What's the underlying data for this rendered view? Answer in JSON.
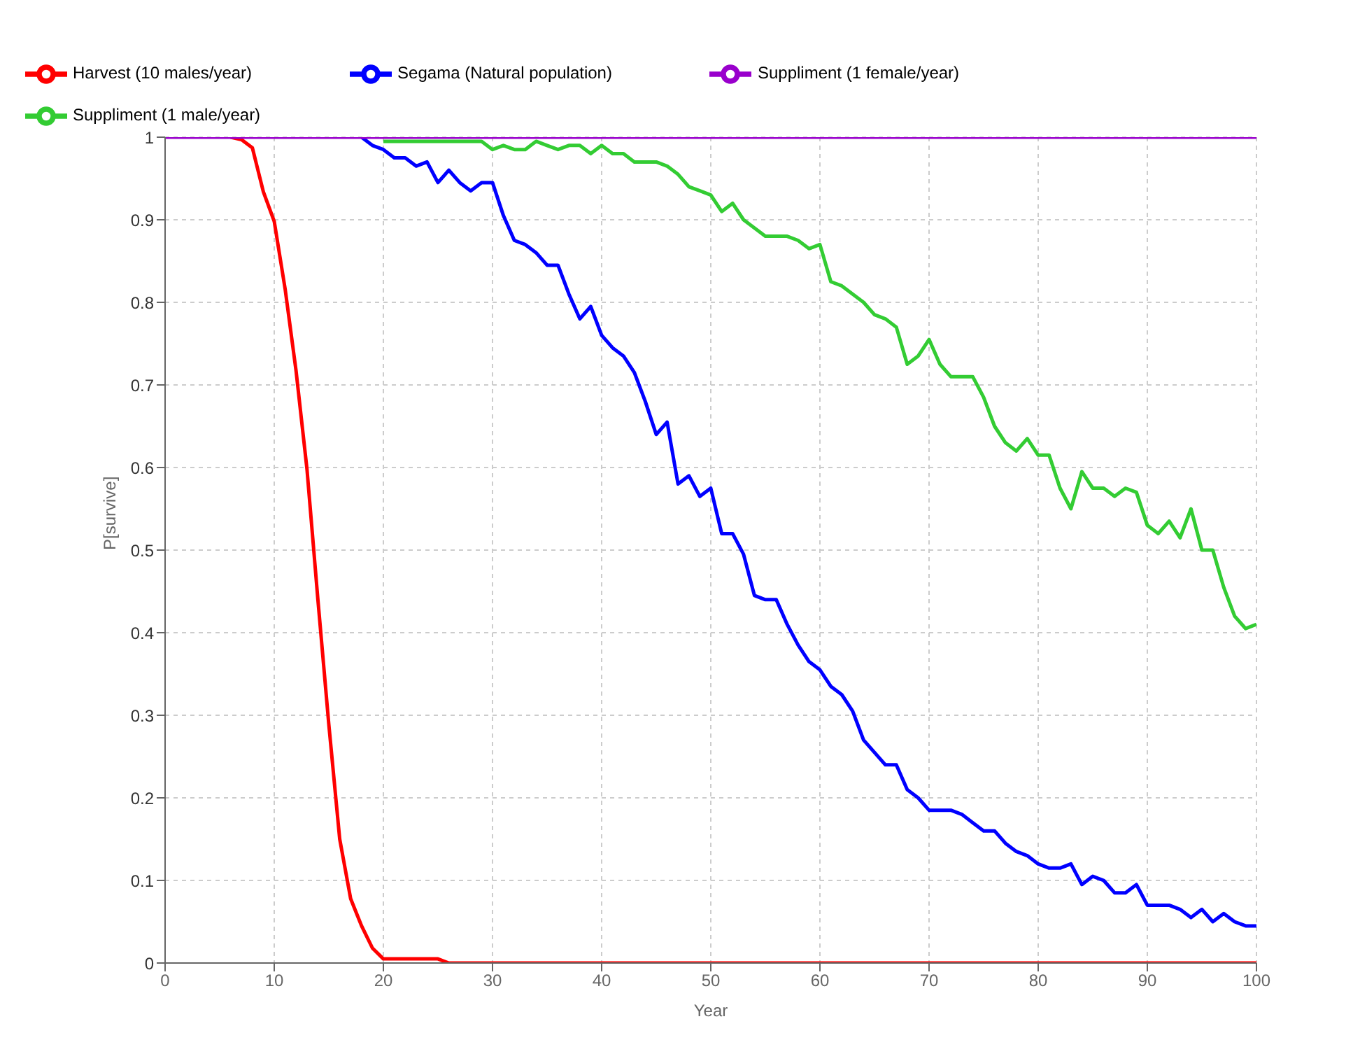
{
  "chart_data": {
    "type": "line",
    "xlabel": "Year",
    "ylabel": "P[survive]",
    "x": [
      0,
      1,
      2,
      3,
      4,
      5,
      6,
      7,
      8,
      9,
      10,
      11,
      12,
      13,
      14,
      15,
      16,
      17,
      18,
      19,
      20,
      21,
      22,
      23,
      24,
      25,
      26,
      27,
      28,
      29,
      30,
      31,
      32,
      33,
      34,
      35,
      36,
      37,
      38,
      39,
      40,
      41,
      42,
      43,
      44,
      45,
      46,
      47,
      48,
      49,
      50,
      51,
      52,
      53,
      54,
      55,
      56,
      57,
      58,
      59,
      60,
      61,
      62,
      63,
      64,
      65,
      66,
      67,
      68,
      69,
      70,
      71,
      72,
      73,
      74,
      75,
      76,
      77,
      78,
      79,
      80,
      81,
      82,
      83,
      84,
      85,
      86,
      87,
      88,
      89,
      90,
      91,
      92,
      93,
      94,
      95,
      96,
      97,
      98,
      99,
      100
    ],
    "series": [
      {
        "name": "Segama (Natural population)",
        "color": "#0000ff",
        "values": [
          null,
          null,
          null,
          null,
          null,
          null,
          null,
          null,
          null,
          null,
          null,
          null,
          null,
          null,
          null,
          null,
          null,
          null,
          1,
          0.99,
          0.985,
          0.975,
          0.975,
          0.965,
          0.97,
          0.945,
          0.96,
          0.945,
          0.935,
          0.945,
          0.945,
          0.905,
          0.875,
          0.87,
          0.86,
          0.845,
          0.845,
          0.81,
          0.78,
          0.795,
          0.76,
          0.745,
          0.735,
          0.715,
          0.68,
          0.64,
          0.655,
          0.58,
          0.59,
          0.565,
          0.575,
          0.52,
          0.52,
          0.495,
          0.445,
          0.44,
          0.44,
          0.41,
          0.385,
          0.365,
          0.355,
          0.335,
          0.325,
          0.305,
          0.27,
          0.255,
          0.24,
          0.24,
          0.21,
          0.2,
          0.185,
          0.185,
          0.185,
          0.18,
          0.17,
          0.16,
          0.16,
          0.145,
          0.135,
          0.13,
          0.12,
          0.115,
          0.115,
          0.12,
          0.095,
          0.105,
          0.1,
          0.085,
          0.085,
          0.095,
          0.07,
          0.07,
          0.07,
          0.065,
          0.055,
          0.065,
          0.05,
          0.06,
          0.05,
          0.045,
          0.045
        ]
      },
      {
        "name": "Harvest (10 males/year)",
        "color": "#ff0000",
        "values": [
          null,
          null,
          null,
          null,
          null,
          null,
          1,
          0.997,
          0.987,
          0.934,
          0.898,
          0.816,
          0.717,
          0.598,
          0.44,
          0.289,
          0.15,
          0.078,
          0.045,
          0.018,
          0.005,
          0.005,
          0.005,
          0.005,
          0.005,
          0.005,
          0,
          0,
          0,
          0,
          0,
          0,
          0,
          0,
          0,
          0,
          0,
          0,
          0,
          0,
          0,
          0,
          0,
          0,
          0,
          0,
          0,
          0,
          0,
          0,
          0,
          0,
          0,
          0,
          0,
          0,
          0,
          0,
          0,
          0,
          0,
          0,
          0,
          0,
          0,
          0,
          0,
          0,
          0,
          0,
          0,
          0,
          0,
          0,
          0,
          0,
          0,
          0,
          0,
          0,
          0,
          0,
          0,
          0,
          0,
          0,
          0,
          0,
          0,
          0,
          0,
          0,
          0,
          0,
          0,
          0,
          0,
          0,
          0,
          0,
          0
        ]
      },
      {
        "name": "Suppliment (1 male/year)",
        "color": "#33cc33",
        "values": [
          null,
          null,
          null,
          null,
          null,
          null,
          null,
          null,
          null,
          null,
          null,
          null,
          null,
          null,
          null,
          null,
          null,
          null,
          null,
          null,
          0.995,
          0.995,
          0.995,
          0.995,
          0.995,
          0.995,
          0.995,
          0.995,
          0.995,
          0.995,
          0.985,
          0.99,
          0.985,
          0.985,
          0.995,
          0.99,
          0.985,
          0.99,
          0.99,
          0.98,
          0.99,
          0.98,
          0.98,
          0.97,
          0.97,
          0.97,
          0.965,
          0.955,
          0.94,
          0.935,
          0.93,
          0.91,
          0.92,
          0.9,
          0.89,
          0.88,
          0.88,
          0.88,
          0.875,
          0.865,
          0.87,
          0.825,
          0.82,
          0.81,
          0.8,
          0.785,
          0.78,
          0.77,
          0.725,
          0.735,
          0.755,
          0.725,
          0.71,
          0.71,
          0.71,
          0.685,
          0.65,
          0.63,
          0.62,
          0.635,
          0.615,
          0.615,
          0.575,
          0.55,
          0.595,
          0.575,
          0.575,
          0.565,
          0.575,
          0.57,
          0.53,
          0.52,
          0.535,
          0.515,
          0.55,
          0.5,
          0.5,
          0.455,
          0.42,
          0.405,
          0.41
        ]
      },
      {
        "name": "Suppliment (1 female/year)",
        "color": "#9900cc",
        "values": [
          1,
          1,
          1,
          1,
          1,
          1,
          1,
          1,
          1,
          1,
          1,
          1,
          1,
          1,
          1,
          1,
          1,
          1,
          1,
          1,
          1,
          1,
          1,
          1,
          1,
          1,
          1,
          1,
          1,
          1,
          1,
          1,
          1,
          1,
          1,
          1,
          1,
          1,
          1,
          1,
          1,
          1,
          1,
          1,
          1,
          1,
          1,
          1,
          1,
          1,
          1,
          1,
          1,
          1,
          1,
          1,
          1,
          1,
          1,
          1,
          1,
          1,
          1,
          1,
          1,
          1,
          1,
          1,
          1,
          1,
          1,
          1,
          1,
          1,
          1,
          1,
          1,
          1,
          1,
          1,
          1,
          1,
          1,
          1,
          1,
          1,
          1,
          1,
          1,
          1,
          1,
          1,
          1,
          1,
          1,
          1,
          1,
          1,
          1,
          1,
          1
        ]
      }
    ],
    "xlim": [
      0,
      100
    ],
    "xticks": [
      0,
      10,
      20,
      30,
      40,
      50,
      60,
      70,
      80,
      90,
      100
    ],
    "ylim": [
      0,
      1
    ],
    "yticks": [
      0,
      0.1,
      0.2,
      0.3,
      0.4,
      0.5,
      0.6,
      0.7,
      0.8,
      0.9,
      1
    ],
    "grid": true,
    "legend": "top left",
    "marker": "none",
    "line_style": "solid"
  }
}
